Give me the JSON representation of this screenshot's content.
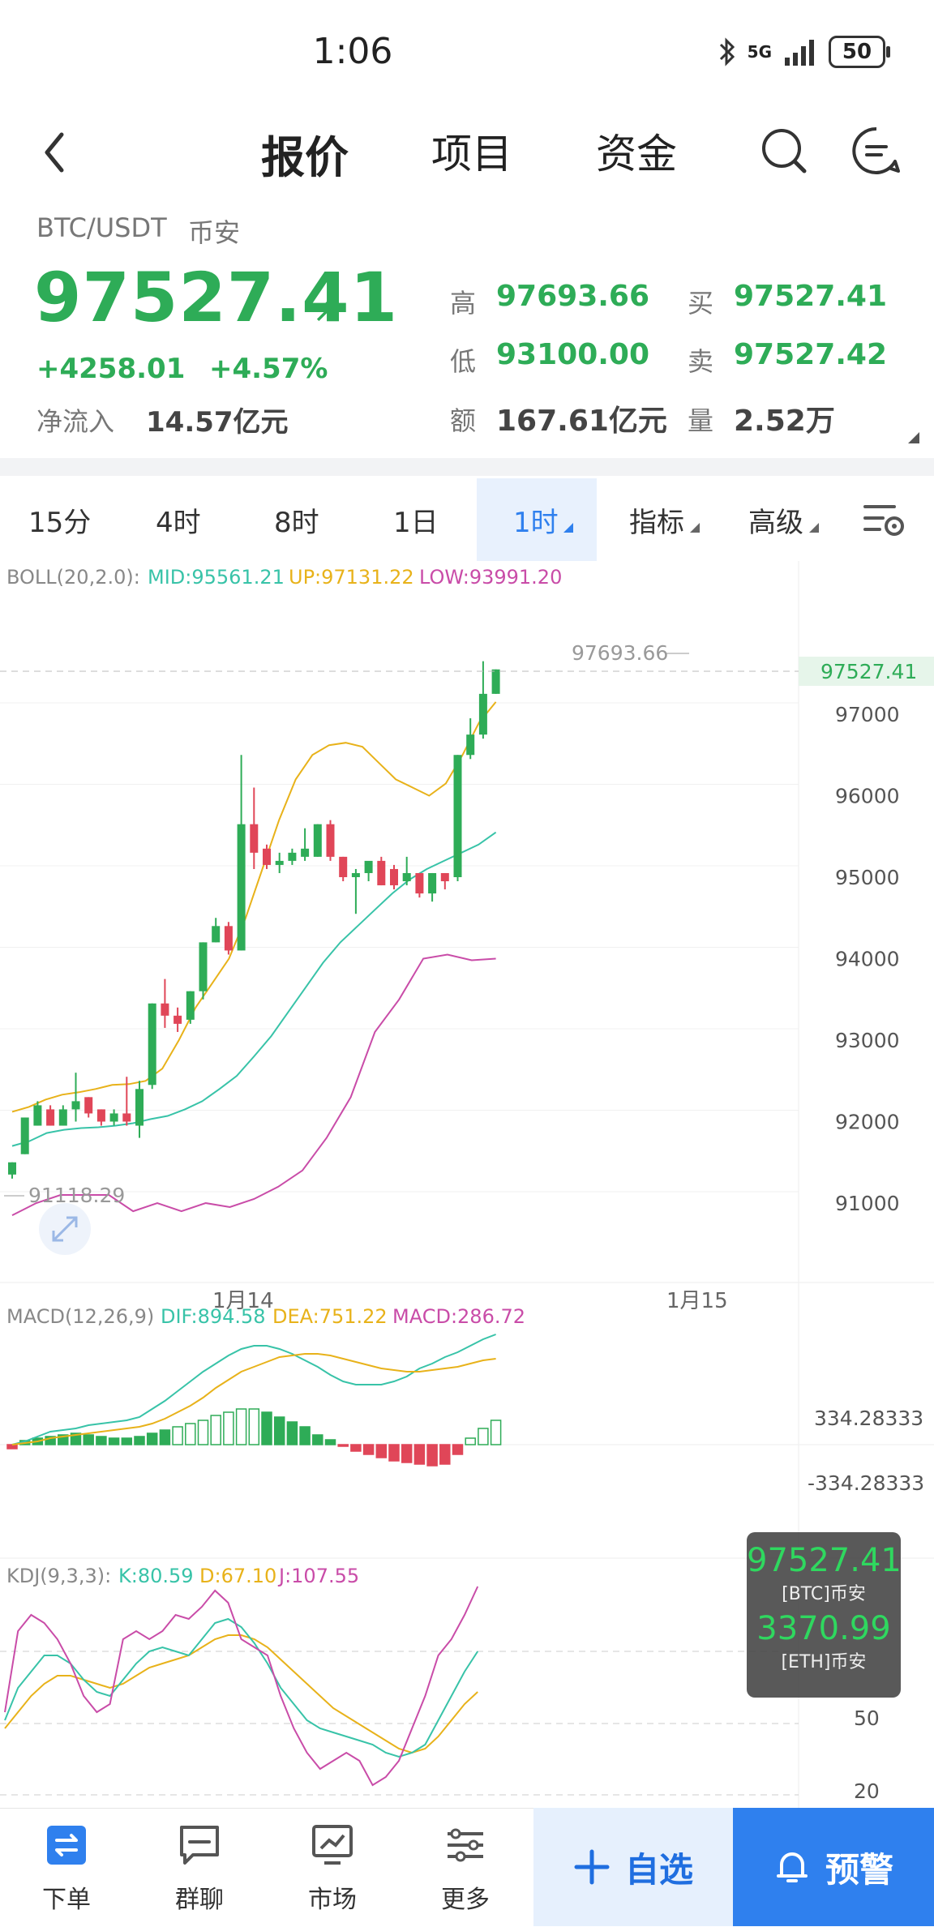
{
  "status": {
    "time": "1:06",
    "network": "5G",
    "battery": "50"
  },
  "nav": {
    "tabs": [
      "报价",
      "项目",
      "资金"
    ]
  },
  "quote": {
    "pair": "BTC/USDT",
    "exchange": "币安",
    "price": "97527.41",
    "change": "+4258.01",
    "change_pct": "+4.57%",
    "netflow_label": "净流入",
    "netflow": "14.57亿元",
    "high_label": "高",
    "high": "97693.66",
    "low_label": "低",
    "low": "93100.00",
    "amount_label": "额",
    "amount": "167.61亿元",
    "bid_label": "买",
    "bid": "97527.41",
    "ask_label": "卖",
    "ask": "97527.42",
    "volume_label": "量",
    "volume": "2.52万"
  },
  "intervals": [
    "15分",
    "4时",
    "8时",
    "1日",
    "1时",
    "指标",
    "高级"
  ],
  "selected_interval": "1时",
  "boll": {
    "label": "BOLL(20,2.0):",
    "mid": "MID:95561.21",
    "up": "UP:97131.22",
    "low": "LOW:93991.20"
  },
  "macd": {
    "label": "MACD(12,26,9)",
    "dif": "DIF:894.58",
    "dea": "DEA:751.22",
    "macd": "MACD:286.72",
    "scale_pos": "334.28333",
    "scale_neg": "-334.28333"
  },
  "kdj": {
    "label": "KDJ(9,3,3):",
    "k": "K:80.59",
    "d": "D:67.10",
    "j": "J:107.55",
    "ticks": [
      "50",
      "20"
    ]
  },
  "price_axis": [
    "97000",
    "96000",
    "95000",
    "94000",
    "93000",
    "92000",
    "91000"
  ],
  "current_price_tag": "97527.41",
  "high_marker": "97693.66",
  "low_marker": "91118.29",
  "date_labels": [
    "1月14",
    "1月15"
  ],
  "float_card": {
    "price1": "97527.41",
    "label1": "[BTC]币安",
    "price2": "3370.99",
    "label2": "[ETH]币安"
  },
  "bottom_bar": {
    "order": "下单",
    "chat": "群聊",
    "market": "市场",
    "more": "更多",
    "watch": "自选",
    "alert": "预警"
  },
  "colors": {
    "up": "#2eac57",
    "down": "#e04658",
    "accent": "#2f80ee",
    "boll_mid": "#38c3a8",
    "boll_up": "#e8b21a",
    "boll_low": "#c94ca8"
  },
  "chart_data": {
    "type": "candlestick",
    "interval": "1时",
    "ylim": [
      90500,
      98000
    ],
    "x_labels": [
      "1月14",
      "1月15"
    ],
    "candles": [
      {
        "o": 91350,
        "h": 91500,
        "c": 91500,
        "l": 91300
      },
      {
        "o": 91600,
        "h": 92050,
        "c": 92050,
        "l": 91600
      },
      {
        "o": 91950,
        "h": 92250,
        "c": 92200,
        "l": 91950
      },
      {
        "o": 92150,
        "h": 92200,
        "c": 91950,
        "l": 91950
      },
      {
        "o": 91950,
        "h": 92200,
        "c": 92150,
        "l": 91950
      },
      {
        "o": 92150,
        "h": 92600,
        "c": 92250,
        "l": 92000
      },
      {
        "o": 92300,
        "h": 92300,
        "c": 92100,
        "l": 92050
      },
      {
        "o": 92150,
        "h": 92150,
        "c": 92000,
        "l": 91950
      },
      {
        "o": 92000,
        "h": 92150,
        "c": 92100,
        "l": 91950
      },
      {
        "o": 92100,
        "h": 92550,
        "c": 92000,
        "l": 91950
      },
      {
        "o": 91950,
        "h": 92500,
        "c": 92400,
        "l": 91800
      },
      {
        "o": 92450,
        "h": 93450,
        "c": 93450,
        "l": 92400
      },
      {
        "o": 93450,
        "h": 93750,
        "c": 93300,
        "l": 93150
      },
      {
        "o": 93300,
        "h": 93400,
        "c": 93200,
        "l": 93100
      },
      {
        "o": 93250,
        "h": 93600,
        "c": 93600,
        "l": 93200
      },
      {
        "o": 93600,
        "h": 94200,
        "c": 94200,
        "l": 93500
      },
      {
        "o": 94200,
        "h": 94500,
        "c": 94400,
        "l": 94200
      },
      {
        "o": 94400,
        "h": 94450,
        "c": 94100,
        "l": 94050
      },
      {
        "o": 94100,
        "h": 96500,
        "c": 95650,
        "l": 94100
      },
      {
        "o": 95650,
        "h": 96100,
        "c": 95300,
        "l": 95100
      },
      {
        "o": 95350,
        "h": 95400,
        "c": 95150,
        "l": 95100
      },
      {
        "o": 95150,
        "h": 95300,
        "c": 95200,
        "l": 95050
      },
      {
        "o": 95200,
        "h": 95350,
        "c": 95300,
        "l": 95150
      },
      {
        "o": 95250,
        "h": 95600,
        "c": 95350,
        "l": 95200
      },
      {
        "o": 95250,
        "h": 95650,
        "c": 95650,
        "l": 95250
      },
      {
        "o": 95650,
        "h": 95700,
        "c": 95250,
        "l": 95200
      },
      {
        "o": 95250,
        "h": 95250,
        "c": 95000,
        "l": 94950
      },
      {
        "o": 95000,
        "h": 95100,
        "c": 95050,
        "l": 94550
      },
      {
        "o": 95050,
        "h": 95150,
        "c": 95200,
        "l": 94950
      },
      {
        "o": 95200,
        "h": 95250,
        "c": 94900,
        "l": 94900
      },
      {
        "o": 95100,
        "h": 95150,
        "c": 94900,
        "l": 94850
      },
      {
        "o": 94950,
        "h": 95250,
        "c": 95050,
        "l": 94900
      },
      {
        "o": 95050,
        "h": 95050,
        "c": 94800,
        "l": 94750
      },
      {
        "o": 94800,
        "h": 95050,
        "c": 95050,
        "l": 94700
      },
      {
        "o": 95050,
        "h": 95050,
        "c": 94950,
        "l": 94850
      },
      {
        "o": 95000,
        "h": 96500,
        "c": 96500,
        "l": 94950
      },
      {
        "o": 96500,
        "h": 96950,
        "c": 96750,
        "l": 96450
      },
      {
        "o": 96750,
        "h": 97650,
        "c": 97250,
        "l": 96700
      },
      {
        "o": 97250,
        "h": 97550,
        "c": 97550,
        "l": 97250
      }
    ],
    "boll_up": [
      92120,
      92180,
      92270,
      92330,
      92360,
      92400,
      92450,
      92460,
      92500,
      92650,
      93000,
      93400,
      93700,
      94000,
      94500,
      95100,
      95700,
      96200,
      96500,
      96620,
      96650,
      96600,
      96400,
      96200,
      96100,
      96000,
      96150,
      96500,
      96900,
      97150
    ],
    "boll_mid": [
      91700,
      91760,
      91860,
      91900,
      91920,
      91930,
      91950,
      91980,
      92030,
      92070,
      92150,
      92250,
      92400,
      92560,
      92800,
      93050,
      93350,
      93650,
      93950,
      94200,
      94400,
      94600,
      94800,
      94970,
      95100,
      95200,
      95300,
      95400,
      95550
    ],
    "boll_low": [
      90850,
      91000,
      91100,
      91100,
      91100,
      90900,
      91000,
      90900,
      91000,
      90950,
      91050,
      91200,
      91400,
      91800,
      92300,
      93100,
      93500,
      94000,
      94050,
      93980,
      94000
    ]
  }
}
